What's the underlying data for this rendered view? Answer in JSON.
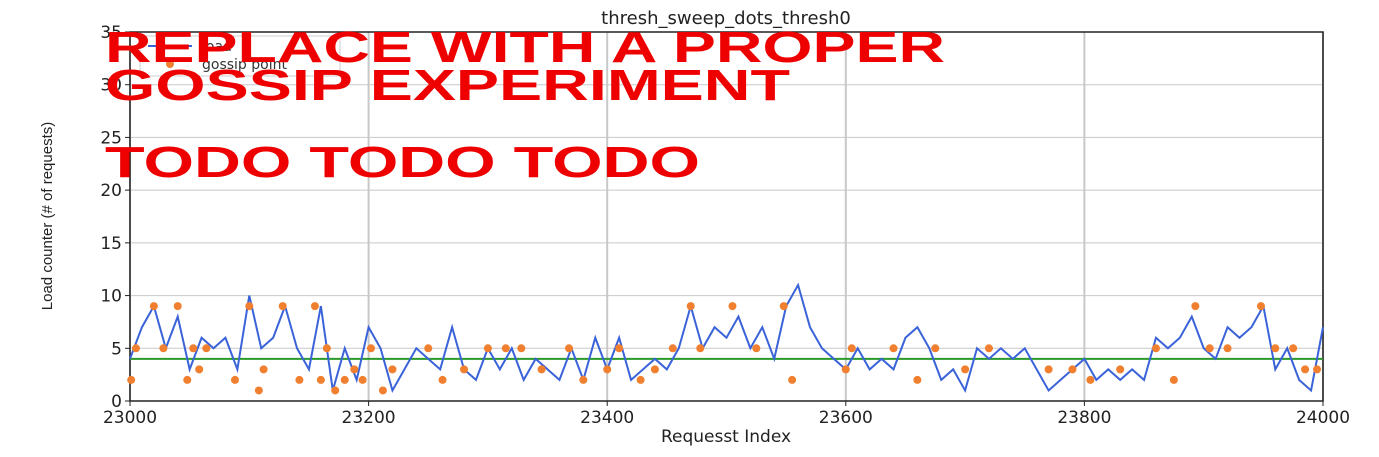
{
  "chart_data": {
    "type": "line",
    "title": "thresh_sweep_dots_thresh0",
    "xlabel": "Requesst Index",
    "ylabel": "Load counter (# of requests)",
    "xlim": [
      23000,
      24000
    ],
    "ylim": [
      0,
      35
    ],
    "xticks": [
      23000,
      23200,
      23400,
      23600,
      23800,
      24000
    ],
    "yticks": [
      0,
      5,
      10,
      15,
      20,
      25,
      30,
      35
    ],
    "grid": true,
    "legend": "upper left",
    "series": [
      {
        "name": "load",
        "color": "#3b63d9",
        "mode": "line",
        "x": [
          23000,
          23010,
          23020,
          23030,
          23040,
          23050,
          23060,
          23070,
          23080,
          23090,
          23100,
          23110,
          23120,
          23130,
          23140,
          23150,
          23160,
          23170,
          23180,
          23190,
          23200,
          23210,
          23220,
          23230,
          23240,
          23250,
          23260,
          23270,
          23280,
          23290,
          23300,
          23310,
          23320,
          23330,
          23340,
          23350,
          23360,
          23370,
          23380,
          23390,
          23400,
          23410,
          23420,
          23430,
          23440,
          23450,
          23460,
          23470,
          23480,
          23490,
          23500,
          23510,
          23520,
          23530,
          23540,
          23550,
          23560,
          23570,
          23580,
          23590,
          23600,
          23610,
          23620,
          23630,
          23640,
          23650,
          23660,
          23670,
          23680,
          23690,
          23700,
          23710,
          23720,
          23730,
          23740,
          23750,
          23760,
          23770,
          23780,
          23790,
          23800,
          23810,
          23820,
          23830,
          23840,
          23850,
          23860,
          23870,
          23880,
          23890,
          23900,
          23910,
          23920,
          23930,
          23940,
          23950,
          23960,
          23970,
          23980,
          23990,
          24000
        ],
        "values": [
          4,
          7,
          9,
          5,
          8,
          3,
          6,
          5,
          6,
          3,
          10,
          5,
          6,
          9,
          5,
          3,
          9,
          1,
          5,
          2,
          7,
          5,
          1,
          3,
          5,
          4,
          3,
          7,
          3,
          2,
          5,
          3,
          5,
          2,
          4,
          3,
          2,
          5,
          2,
          6,
          3,
          6,
          2,
          3,
          4,
          3,
          5,
          9,
          5,
          7,
          6,
          8,
          5,
          7,
          4,
          9,
          11,
          7,
          5,
          4,
          3,
          5,
          3,
          4,
          3,
          6,
          7,
          5,
          2,
          3,
          1,
          5,
          4,
          5,
          4,
          5,
          3,
          1,
          2,
          3,
          4,
          2,
          3,
          2,
          3,
          2,
          6,
          5,
          6,
          8,
          5,
          4,
          7,
          6,
          7,
          9,
          3,
          5,
          2,
          1,
          7
        ]
      },
      {
        "name": "gossip point",
        "color": "#f08030",
        "mode": "markers",
        "x": [
          23001,
          23005,
          23020,
          23028,
          23040,
          23048,
          23053,
          23058,
          23064,
          23088,
          23100,
          23108,
          23112,
          23128,
          23142,
          23155,
          23160,
          23165,
          23172,
          23180,
          23188,
          23195,
          23202,
          23212,
          23220,
          23250,
          23262,
          23280,
          23300,
          23315,
          23328,
          23345,
          23368,
          23380,
          23400,
          23410,
          23428,
          23440,
          23455,
          23470,
          23478,
          23505,
          23525,
          23548,
          23555,
          23600,
          23605,
          23640,
          23660,
          23675,
          23700,
          23720,
          23770,
          23790,
          23805,
          23830,
          23860,
          23875,
          23893,
          23905,
          23920,
          23948,
          23960,
          23975,
          23985,
          23995
        ],
        "values": [
          2,
          5,
          9,
          5,
          9,
          2,
          5,
          3,
          5,
          2,
          9,
          1,
          3,
          9,
          2,
          9,
          2,
          5,
          1,
          2,
          3,
          2,
          5,
          1,
          3,
          5,
          2,
          3,
          5,
          5,
          5,
          3,
          5,
          2,
          3,
          5,
          2,
          3,
          5,
          9,
          5,
          9,
          5,
          9,
          2,
          3,
          5,
          5,
          2,
          5,
          3,
          5,
          3,
          3,
          2,
          3,
          5,
          2,
          9,
          5,
          5,
          9,
          5,
          5,
          3,
          3
        ]
      }
    ],
    "hlines": [
      {
        "value": 4,
        "color": "#2a9a2a"
      }
    ],
    "annotations": [
      {
        "text": "REPLACE WITH A PROPER",
        "color": "#ee0000"
      },
      {
        "text": "GOSSIP EXPERIMENT",
        "color": "#ee0000"
      },
      {
        "text": "TODO TODO TODO",
        "color": "#ee0000"
      }
    ]
  }
}
